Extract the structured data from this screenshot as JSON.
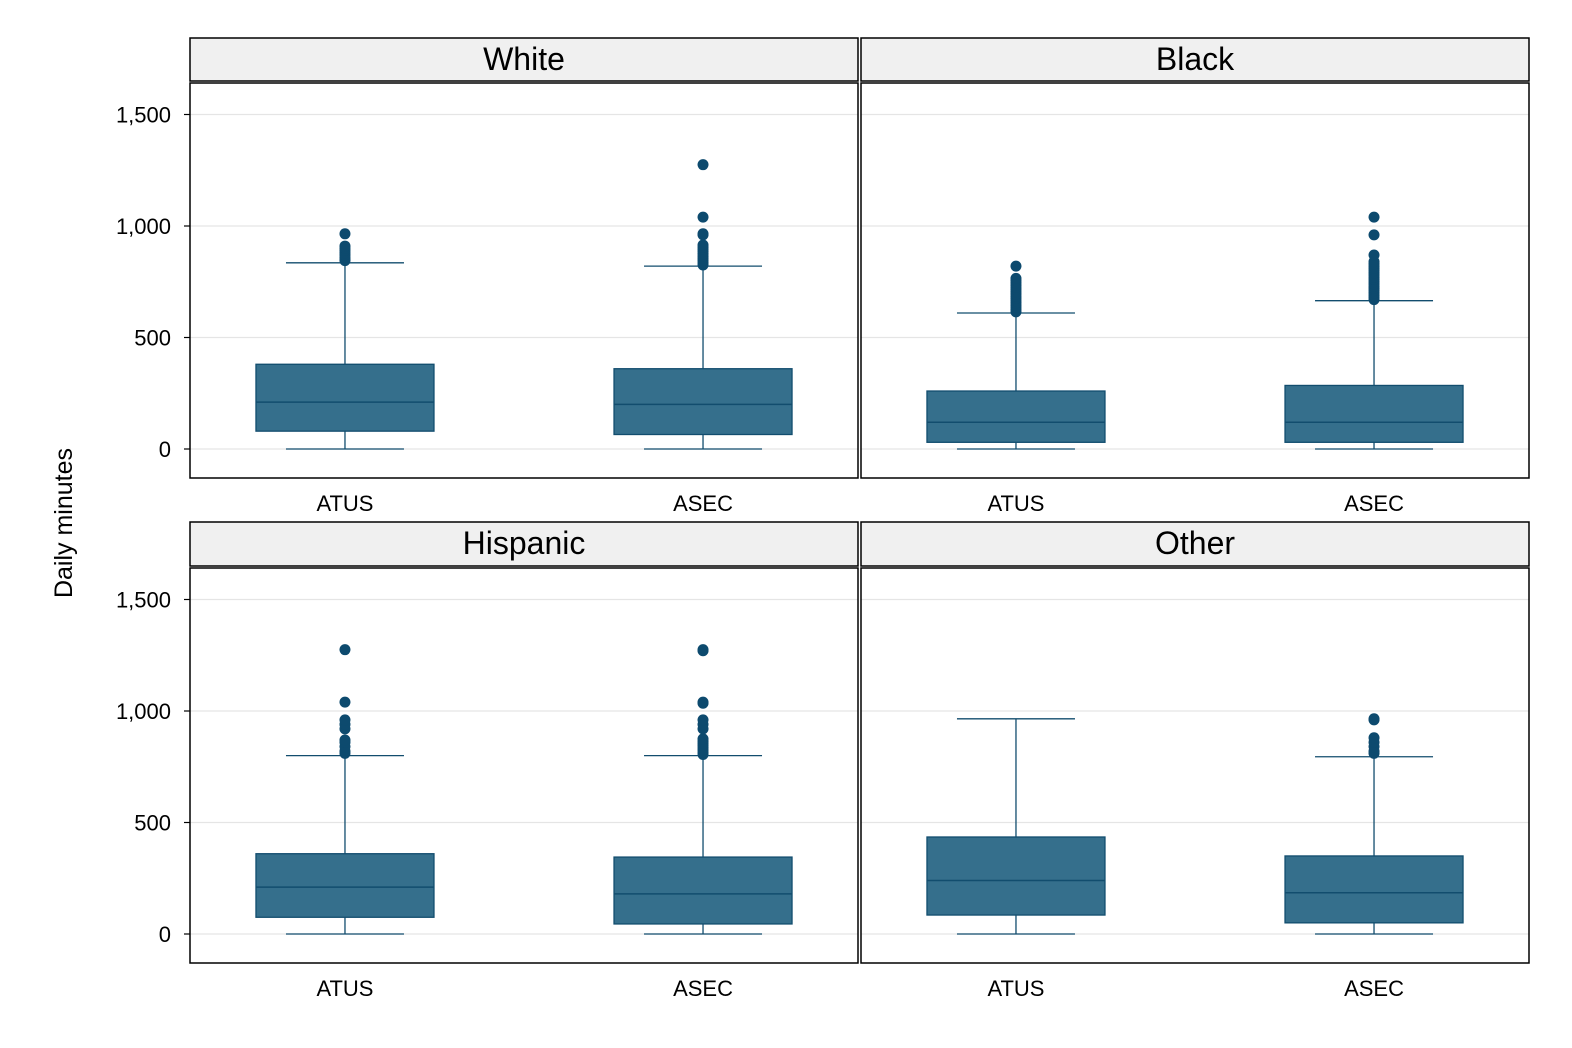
{
  "chart_data": {
    "type": "boxplot",
    "ylabel": "Daily minutes",
    "xlabel": "",
    "ylim": [
      -130,
      1680
    ],
    "yticks": [
      0,
      500,
      1000,
      1500
    ],
    "ytick_labels": [
      "0",
      "500",
      "1,000",
      "1,500"
    ],
    "grid": true,
    "categories": [
      "ATUS",
      "ASEC"
    ],
    "colors": {
      "box_fill": "#356f8c",
      "box_stroke": "#124d6e",
      "outlier": "#0d4a6e",
      "strip_bg": "#f0f0f0",
      "grid": "#e5e5e5"
    },
    "panels": [
      {
        "title": "White",
        "boxes": [
          {
            "category": "ATUS",
            "min": 0,
            "q1": 80,
            "median": 210,
            "q3": 380,
            "max": 835,
            "outliers": [
              845,
              850,
              860,
              870,
              880,
              890,
              900,
              910,
              965
            ]
          },
          {
            "category": "ASEC",
            "min": 0,
            "q1": 65,
            "median": 200,
            "q3": 360,
            "max": 820,
            "outliers": [
              825,
              835,
              845,
              855,
              865,
              875,
              885,
              895,
              905,
              915,
              960,
              965,
              1040,
              1275
            ]
          }
        ]
      },
      {
        "title": "Black",
        "boxes": [
          {
            "category": "ATUS",
            "min": 0,
            "q1": 30,
            "median": 120,
            "q3": 260,
            "max": 610,
            "outliers": [
              615,
              625,
              635,
              645,
              655,
              665,
              675,
              685,
              695,
              705,
              715,
              725,
              735,
              745,
              755,
              765,
              820
            ]
          },
          {
            "category": "ASEC",
            "min": 0,
            "q1": 30,
            "median": 120,
            "q3": 285,
            "max": 665,
            "outliers": [
              670,
              680,
              690,
              700,
              710,
              720,
              730,
              740,
              750,
              760,
              770,
              780,
              790,
              800,
              810,
              820,
              830,
              840,
              870,
              960,
              1040
            ]
          }
        ]
      },
      {
        "title": "Hispanic",
        "boxes": [
          {
            "category": "ATUS",
            "min": 0,
            "q1": 75,
            "median": 210,
            "q3": 360,
            "max": 800,
            "outliers": [
              810,
              820,
              840,
              860,
              870,
              920,
              940,
              960,
              1040,
              1275
            ]
          },
          {
            "category": "ASEC",
            "min": 0,
            "q1": 45,
            "median": 180,
            "q3": 345,
            "max": 800,
            "outliers": [
              805,
              815,
              825,
              835,
              845,
              855,
              865,
              875,
              920,
              940,
              960,
              1035,
              1040,
              1270,
              1275
            ]
          }
        ]
      },
      {
        "title": "Other",
        "boxes": [
          {
            "category": "ATUS",
            "min": 0,
            "q1": 85,
            "median": 240,
            "q3": 435,
            "max": 965,
            "outliers": []
          },
          {
            "category": "ASEC",
            "min": 0,
            "q1": 50,
            "median": 185,
            "q3": 350,
            "max": 795,
            "outliers": [
              810,
              820,
              840,
              860,
              880,
              960,
              965
            ]
          }
        ]
      }
    ]
  }
}
